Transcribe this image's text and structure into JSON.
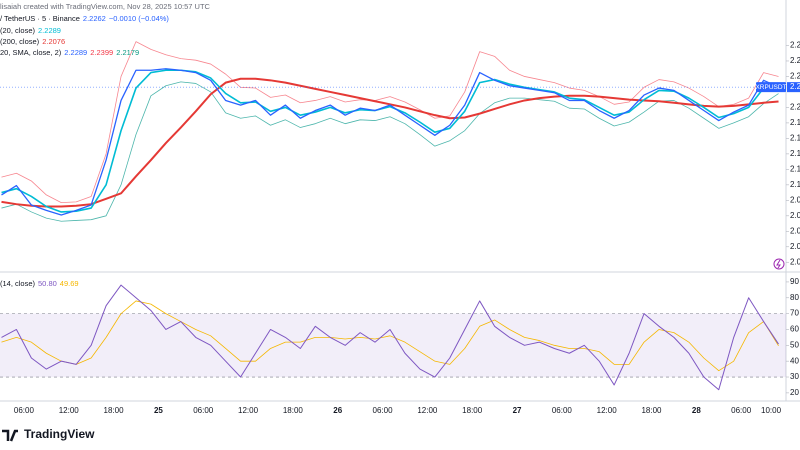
{
  "header": {
    "credit": "lisaiah created with TradingView.com, Nov 28, 2025 10:57 UTC",
    "symbol": "/ TetherUS · 5 · Binance",
    "price": "2.2262",
    "change": "−0.0010 (−0.04%)",
    "legend": [
      {
        "label": "(20, close)",
        "values": [
          "2.2289"
        ],
        "colors": [
          "#00bcd4"
        ]
      },
      {
        "label": "(200, close)",
        "values": [
          "2.2076"
        ],
        "colors": [
          "#e53935"
        ]
      },
      {
        "label": "20, SMA, close, 2)",
        "values": [
          "2.2289",
          "2.2399",
          "2.2179"
        ],
        "colors": [
          "#2962ff",
          "#f23645",
          "#089981"
        ]
      },
      {
        "label": "(14, close)",
        "values": [
          "50.80",
          "49.69"
        ],
        "colors": [
          "#7e57c2",
          "#f5b700"
        ]
      }
    ]
  },
  "footer": {
    "brand": "TradingView"
  },
  "chart_data": [
    {
      "type": "line",
      "x": [
        3,
        5,
        7,
        9,
        11,
        13,
        15,
        17,
        19,
        21,
        23,
        25,
        27,
        29,
        31,
        33,
        35,
        37,
        39,
        41,
        43,
        45,
        47,
        49,
        51,
        53,
        55,
        57,
        59,
        61,
        63,
        65,
        67,
        69,
        71,
        73,
        75,
        77,
        79,
        81,
        83,
        85,
        87,
        89,
        91,
        93,
        95,
        97,
        99,
        101,
        103,
        105,
        107
      ],
      "xlim": [
        2.8,
        108
      ],
      "ylim": [
        1.99,
        2.3
      ],
      "yticks": [
        {
          "value": 2.28,
          "label": "2.2"
        },
        {
          "value": 2.26,
          "label": "2.2"
        },
        {
          "value": 2.24,
          "label": "2.2"
        },
        {
          "value": 2.2,
          "label": "2.2"
        },
        {
          "value": 2.18,
          "label": "2.1"
        },
        {
          "value": 2.16,
          "label": "2.1"
        },
        {
          "value": 2.14,
          "label": "2.1"
        },
        {
          "value": 2.12,
          "label": "2.1"
        },
        {
          "value": 2.1,
          "label": "2.1"
        },
        {
          "value": 2.08,
          "label": "2.0"
        },
        {
          "value": 2.06,
          "label": "2.0"
        },
        {
          "value": 2.04,
          "label": "2.0"
        },
        {
          "value": 2.02,
          "label": "2.0"
        },
        {
          "value": 2.0,
          "label": "2.0"
        }
      ],
      "price_label": {
        "name": "XRPUSDT",
        "label": "2.2",
        "value": 2.2262,
        "color": "#2962ff"
      },
      "series": [
        {
          "color": "#f7868f",
          "line_width": 0.8,
          "values": [
            2.11,
            2.115,
            2.105,
            2.087,
            2.077,
            2.078,
            2.085,
            2.14,
            2.24,
            2.285,
            2.275,
            2.268,
            2.263,
            2.261,
            2.256,
            2.243,
            2.226,
            2.225,
            2.213,
            2.216,
            2.206,
            2.209,
            2.214,
            2.207,
            2.21,
            2.209,
            2.214,
            2.207,
            2.197,
            2.186,
            2.189,
            2.22,
            2.272,
            2.266,
            2.248,
            2.24,
            2.236,
            2.232,
            2.225,
            2.222,
            2.214,
            2.204,
            2.207,
            2.226,
            2.236,
            2.233,
            2.225,
            2.214,
            2.201,
            2.204,
            2.212,
            2.245,
            2.2399
          ]
        },
        {
          "color": "#4db6ac",
          "line_width": 0.8,
          "values": [
            2.07,
            2.075,
            2.065,
            2.057,
            2.053,
            2.054,
            2.055,
            2.06,
            2.1,
            2.165,
            2.215,
            2.228,
            2.233,
            2.231,
            2.22,
            2.193,
            2.186,
            2.189,
            2.177,
            2.184,
            2.174,
            2.179,
            2.186,
            2.179,
            2.184,
            2.183,
            2.188,
            2.179,
            2.165,
            2.15,
            2.157,
            2.17,
            2.192,
            2.206,
            2.212,
            2.212,
            2.21,
            2.208,
            2.199,
            2.198,
            2.186,
            2.176,
            2.181,
            2.194,
            2.208,
            2.209,
            2.199,
            2.186,
            2.173,
            2.18,
            2.188,
            2.205,
            2.2179
          ]
        },
        {
          "color": "#e53935",
          "line_width": 2,
          "values": [
            2.078,
            2.075,
            2.073,
            2.072,
            2.072,
            2.073,
            2.075,
            2.082,
            2.089,
            2.111,
            2.132,
            2.154,
            2.174,
            2.195,
            2.217,
            2.232,
            2.237,
            2.237,
            2.235,
            2.232,
            2.228,
            2.224,
            2.22,
            2.216,
            2.212,
            2.208,
            2.204,
            2.2,
            2.195,
            2.19,
            2.186,
            2.187,
            2.192,
            2.198,
            2.204,
            2.209,
            2.212,
            2.214,
            2.215,
            2.215,
            2.214,
            2.212,
            2.21,
            2.209,
            2.208,
            2.206,
            2.204,
            2.202,
            2.201,
            2.202,
            2.204,
            2.206,
            2.2076
          ]
        },
        {
          "color": "#00bcd4",
          "line_width": 1.6,
          "values": [
            2.09,
            2.095,
            2.085,
            2.072,
            2.065,
            2.066,
            2.07,
            2.1,
            2.17,
            2.225,
            2.245,
            2.248,
            2.248,
            2.246,
            2.238,
            2.218,
            2.206,
            2.207,
            2.195,
            2.2,
            2.19,
            2.194,
            2.2,
            2.193,
            2.197,
            2.196,
            2.201,
            2.193,
            2.181,
            2.168,
            2.173,
            2.195,
            2.232,
            2.236,
            2.23,
            2.226,
            2.223,
            2.22,
            2.212,
            2.21,
            2.2,
            2.19,
            2.194,
            2.21,
            2.222,
            2.221,
            2.212,
            2.2,
            2.187,
            2.192,
            2.2,
            2.225,
            2.2289
          ]
        },
        {
          "color": "#2962ff",
          "line_width": 1.3,
          "values": [
            2.087,
            2.099,
            2.074,
            2.067,
            2.061,
            2.067,
            2.074,
            2.132,
            2.209,
            2.248,
            2.248,
            2.25,
            2.248,
            2.245,
            2.235,
            2.209,
            2.203,
            2.209,
            2.19,
            2.203,
            2.186,
            2.196,
            2.203,
            2.19,
            2.199,
            2.196,
            2.203,
            2.19,
            2.177,
            2.164,
            2.177,
            2.203,
            2.245,
            2.235,
            2.228,
            2.225,
            2.222,
            2.219,
            2.209,
            2.209,
            2.196,
            2.186,
            2.196,
            2.216,
            2.225,
            2.222,
            2.209,
            2.196,
            2.183,
            2.194,
            2.203,
            2.235,
            2.2262
          ]
        }
      ]
    },
    {
      "type": "line",
      "x": [
        3,
        5,
        7,
        9,
        11,
        13,
        15,
        17,
        19,
        21,
        23,
        25,
        27,
        29,
        31,
        33,
        35,
        37,
        39,
        41,
        43,
        45,
        47,
        49,
        51,
        53,
        55,
        57,
        59,
        61,
        63,
        65,
        67,
        69,
        71,
        73,
        75,
        77,
        79,
        81,
        83,
        85,
        87,
        89,
        91,
        93,
        95,
        97,
        99,
        101,
        103,
        105,
        107
      ],
      "xlim": [
        2.8,
        108
      ],
      "ylim": [
        15.5,
        95
      ],
      "yticks": [
        20,
        30,
        40,
        50,
        60,
        70,
        80,
        90
      ],
      "band": [
        30,
        70
      ],
      "band_color": "#7e57c2",
      "xticks": [
        {
          "value": 6,
          "label": "06:00"
        },
        {
          "value": 12,
          "label": "12:00"
        },
        {
          "value": 18,
          "label": "18:00"
        },
        {
          "value": 24,
          "label": "25"
        },
        {
          "value": 30,
          "label": "06:00"
        },
        {
          "value": 36,
          "label": "12:00"
        },
        {
          "value": 42,
          "label": "18:00"
        },
        {
          "value": 48,
          "label": "26"
        },
        {
          "value": 54,
          "label": "06:00"
        },
        {
          "value": 60,
          "label": "12:00"
        },
        {
          "value": 66,
          "label": "18:00"
        },
        {
          "value": 72,
          "label": "27"
        },
        {
          "value": 78,
          "label": "06:00"
        },
        {
          "value": 84,
          "label": "12:00"
        },
        {
          "value": 90,
          "label": "18:00"
        },
        {
          "value": 96,
          "label": "28"
        },
        {
          "value": 102,
          "label": "06:00"
        },
        {
          "value": 106,
          "label": "10:00"
        }
      ],
      "series": [
        {
          "color": "#f5b700",
          "line_width": 0.8,
          "values": [
            52,
            55,
            52,
            45,
            40,
            38,
            42,
            55,
            70,
            78,
            76,
            70,
            65,
            60,
            56,
            48,
            40,
            40,
            48,
            52,
            52,
            55,
            55,
            54,
            55,
            54,
            56,
            52,
            46,
            40,
            38,
            48,
            62,
            66,
            60,
            55,
            53,
            50,
            48,
            48,
            46,
            38,
            38,
            52,
            60,
            58,
            52,
            42,
            34,
            40,
            58,
            65,
            49.69
          ]
        },
        {
          "color": "#7e57c2",
          "line_width": 1,
          "values": [
            55,
            60,
            42,
            35,
            40,
            38,
            50,
            75,
            88,
            80,
            72,
            60,
            65,
            55,
            50,
            40,
            30,
            45,
            60,
            55,
            48,
            62,
            55,
            50,
            58,
            52,
            60,
            45,
            35,
            30,
            42,
            60,
            78,
            62,
            55,
            50,
            52,
            48,
            45,
            50,
            40,
            25,
            45,
            70,
            62,
            55,
            45,
            30,
            22,
            55,
            80,
            65,
            50.8
          ]
        }
      ]
    }
  ]
}
